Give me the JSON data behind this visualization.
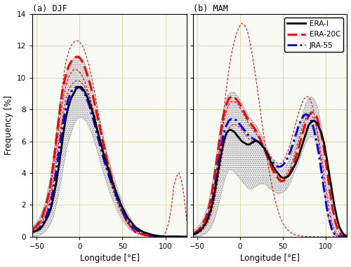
{
  "title_a": "(a) DJF",
  "title_b": "(b) MAM",
  "xlabel": "Longitude [°E]",
  "ylabel": "Frequency [%]",
  "ylim": [
    0,
    14
  ],
  "xlim": [
    -55,
    125
  ],
  "xticks": [
    -50,
    0,
    50,
    100
  ],
  "yticks": [
    0,
    2,
    4,
    6,
    8,
    10,
    12,
    14
  ],
  "legend_labels": [
    "ERA-I",
    "ERA-20C",
    "JRA-55"
  ],
  "lon": [
    -55,
    -52,
    -49,
    -46,
    -43,
    -40,
    -37,
    -34,
    -31,
    -28,
    -25,
    -22,
    -19,
    -16,
    -13,
    -10,
    -7,
    -4,
    -1,
    2,
    5,
    8,
    11,
    14,
    17,
    20,
    23,
    26,
    29,
    32,
    35,
    38,
    41,
    44,
    47,
    50,
    53,
    56,
    59,
    62,
    65,
    68,
    71,
    74,
    77,
    80,
    83,
    86,
    89,
    92,
    95,
    98,
    101,
    104,
    107,
    110,
    113,
    116,
    119,
    122,
    125
  ],
  "djf_erai": [
    0.3,
    0.35,
    0.4,
    0.5,
    0.7,
    1.0,
    1.3,
    1.7,
    2.4,
    3.2,
    4.2,
    5.3,
    6.5,
    7.5,
    8.2,
    8.7,
    9.0,
    9.3,
    9.4,
    9.4,
    9.2,
    8.9,
    8.5,
    8.0,
    7.5,
    6.8,
    6.2,
    5.6,
    5.0,
    4.5,
    4.0,
    3.5,
    3.0,
    2.6,
    2.2,
    1.8,
    1.5,
    1.2,
    1.0,
    0.8,
    0.6,
    0.5,
    0.4,
    0.3,
    0.25,
    0.2,
    0.15,
    0.1,
    0.08,
    0.05,
    0.03,
    0.02,
    0.01,
    0.01,
    0.01,
    0.01,
    0.01,
    0.01,
    0.0,
    0.0,
    0.0
  ],
  "djf_era20c": [
    0.5,
    0.6,
    0.8,
    1.0,
    1.4,
    1.9,
    2.5,
    3.3,
    4.5,
    5.8,
    7.2,
    8.5,
    9.5,
    10.2,
    10.7,
    11.0,
    11.2,
    11.3,
    11.3,
    11.1,
    10.8,
    10.3,
    9.8,
    9.2,
    8.5,
    7.7,
    7.0,
    6.2,
    5.5,
    4.8,
    4.2,
    3.6,
    3.0,
    2.5,
    2.0,
    1.6,
    1.2,
    0.9,
    0.7,
    0.5,
    0.3,
    0.25,
    0.2,
    0.15,
    0.1,
    0.08,
    0.05,
    0.03,
    0.02,
    0.01,
    0.01,
    0.0,
    0.0,
    0.0,
    0.0,
    0.0,
    0.0,
    0.0,
    0.0,
    0.0,
    0.0
  ],
  "djf_jra55": [
    0.3,
    0.35,
    0.45,
    0.6,
    0.85,
    1.15,
    1.55,
    2.1,
    2.9,
    3.9,
    5.0,
    6.2,
    7.3,
    8.1,
    8.7,
    9.1,
    9.3,
    9.4,
    9.4,
    9.3,
    9.1,
    8.7,
    8.3,
    7.7,
    7.2,
    6.5,
    5.9,
    5.3,
    4.7,
    4.2,
    3.7,
    3.2,
    2.8,
    2.4,
    2.0,
    1.6,
    1.3,
    1.0,
    0.8,
    0.6,
    0.5,
    0.4,
    0.3,
    0.25,
    0.2,
    0.15,
    0.1,
    0.08,
    0.05,
    0.03,
    0.02,
    0.01,
    0.01,
    0.01,
    0.01,
    0.01,
    0.0,
    0.0,
    0.0,
    0.0,
    0.0
  ],
  "djf_ci_upper": [
    0.7,
    0.8,
    1.0,
    1.3,
    1.7,
    2.2,
    3.0,
    3.8,
    5.0,
    6.3,
    7.5,
    8.6,
    9.5,
    10.2,
    10.7,
    11.0,
    11.2,
    11.3,
    11.3,
    11.2,
    11.0,
    10.6,
    10.1,
    9.5,
    8.8,
    8.0,
    7.3,
    6.6,
    5.9,
    5.3,
    4.7,
    4.1,
    3.6,
    3.1,
    2.6,
    2.2,
    1.8,
    1.5,
    1.2,
    0.9,
    0.7,
    0.55,
    0.43,
    0.33,
    0.25,
    0.2,
    0.15,
    0.1,
    0.07,
    0.05,
    0.03,
    0.02,
    0.01,
    0.01,
    0.0,
    0.0,
    0.0,
    0.0,
    0.0,
    0.0,
    0.0
  ],
  "djf_ci_lower": [
    0.0,
    0.0,
    0.05,
    0.1,
    0.2,
    0.35,
    0.55,
    0.8,
    1.2,
    1.8,
    2.5,
    3.4,
    4.4,
    5.3,
    6.0,
    6.5,
    7.0,
    7.3,
    7.5,
    7.5,
    7.4,
    7.2,
    6.9,
    6.5,
    6.0,
    5.5,
    4.9,
    4.3,
    3.8,
    3.3,
    2.8,
    2.4,
    2.0,
    1.6,
    1.3,
    1.0,
    0.8,
    0.6,
    0.45,
    0.33,
    0.23,
    0.16,
    0.11,
    0.08,
    0.06,
    0.04,
    0.03,
    0.02,
    0.01,
    0.01,
    0.0,
    0.0,
    0.0,
    0.0,
    0.0,
    0.0,
    0.0,
    0.0,
    0.0,
    0.0,
    0.0
  ],
  "djf_era20c_p1": [
    0.4,
    0.5,
    0.7,
    0.9,
    1.3,
    1.8,
    2.4,
    3.2,
    4.5,
    5.8,
    7.3,
    8.8,
    10.0,
    11.0,
    11.6,
    12.0,
    12.2,
    12.3,
    12.3,
    12.1,
    11.8,
    11.3,
    10.7,
    10.0,
    9.2,
    8.3,
    7.4,
    6.6,
    5.8,
    5.0,
    4.3,
    3.6,
    3.0,
    2.4,
    1.9,
    1.5,
    1.1,
    0.8,
    0.6,
    0.4,
    0.3,
    0.2,
    0.15,
    0.1,
    0.07,
    0.05,
    0.03,
    0.02,
    0.01,
    0.0,
    0.0,
    0.0,
    0.0,
    0.0,
    0.0,
    0.0,
    0.0,
    0.0,
    0.0,
    0.0,
    0.0
  ],
  "djf_era20c_p2": [
    0.4,
    0.5,
    0.65,
    0.9,
    1.2,
    1.7,
    2.2,
    3.0,
    4.0,
    5.2,
    6.5,
    7.8,
    8.8,
    9.5,
    10.0,
    10.3,
    10.5,
    10.5,
    10.4,
    10.2,
    9.9,
    9.4,
    8.9,
    8.3,
    7.7,
    6.9,
    6.2,
    5.5,
    4.8,
    4.2,
    3.6,
    3.1,
    2.6,
    2.1,
    1.7,
    1.4,
    1.1,
    0.85,
    0.65,
    0.5,
    0.38,
    0.28,
    0.21,
    0.15,
    0.11,
    0.08,
    0.05,
    0.03,
    0.02,
    0.01,
    0.01,
    0.0,
    0.0,
    0.0,
    0.0,
    0.0,
    0.0,
    0.0,
    0.0,
    0.0,
    0.0
  ],
  "djf_era20c_p3": [
    0.3,
    0.4,
    0.55,
    0.75,
    1.05,
    1.4,
    1.9,
    2.5,
    3.4,
    4.5,
    5.7,
    6.9,
    7.9,
    8.7,
    9.2,
    9.5,
    9.7,
    9.8,
    9.8,
    9.7,
    9.5,
    9.2,
    8.8,
    8.3,
    7.7,
    7.0,
    6.3,
    5.7,
    5.0,
    4.4,
    3.8,
    3.3,
    2.8,
    2.3,
    1.9,
    1.5,
    1.2,
    0.9,
    0.7,
    0.5,
    0.38,
    0.28,
    0.2,
    0.15,
    0.1,
    0.08,
    0.05,
    0.03,
    0.02,
    0.01,
    0.01,
    0.1,
    0.35,
    0.9,
    1.8,
    3.2,
    3.8,
    4.0,
    3.5,
    2.5,
    1.0
  ],
  "mam_erai": [
    0.15,
    0.2,
    0.3,
    0.4,
    0.6,
    0.85,
    1.2,
    1.7,
    2.4,
    3.3,
    4.3,
    5.2,
    6.0,
    6.5,
    6.7,
    6.7,
    6.6,
    6.4,
    6.2,
    6.0,
    5.9,
    5.8,
    5.8,
    5.9,
    6.0,
    6.0,
    5.9,
    5.7,
    5.5,
    5.2,
    4.8,
    4.5,
    4.2,
    4.0,
    3.8,
    3.7,
    3.7,
    3.8,
    4.0,
    4.3,
    4.6,
    5.0,
    5.5,
    6.0,
    6.5,
    7.0,
    7.2,
    7.3,
    7.2,
    6.9,
    6.5,
    5.9,
    5.0,
    4.0,
    3.0,
    2.0,
    1.2,
    0.6,
    0.3,
    0.1,
    0.05
  ],
  "mam_era20c": [
    0.2,
    0.3,
    0.4,
    0.6,
    0.9,
    1.2,
    1.7,
    2.4,
    3.4,
    4.5,
    5.7,
    6.8,
    7.7,
    8.3,
    8.7,
    8.8,
    8.8,
    8.6,
    8.4,
    8.1,
    7.8,
    7.5,
    7.2,
    7.0,
    6.8,
    6.5,
    6.2,
    5.8,
    5.4,
    5.0,
    4.6,
    4.2,
    3.9,
    3.7,
    3.5,
    3.5,
    3.6,
    3.8,
    4.1,
    4.5,
    5.0,
    5.5,
    6.1,
    6.7,
    7.2,
    7.6,
    7.8,
    7.8,
    7.6,
    7.1,
    6.4,
    5.5,
    4.4,
    3.2,
    2.1,
    1.2,
    0.6,
    0.25,
    0.1,
    0.04,
    0.01
  ],
  "mam_jra55": [
    0.15,
    0.2,
    0.3,
    0.45,
    0.65,
    0.9,
    1.3,
    1.85,
    2.6,
    3.6,
    4.7,
    5.7,
    6.5,
    7.0,
    7.3,
    7.4,
    7.4,
    7.3,
    7.1,
    6.9,
    6.7,
    6.5,
    6.3,
    6.2,
    6.1,
    6.0,
    5.9,
    5.7,
    5.5,
    5.2,
    4.9,
    4.7,
    4.5,
    4.4,
    4.4,
    4.5,
    4.7,
    5.0,
    5.4,
    5.9,
    6.4,
    6.9,
    7.3,
    7.6,
    7.7,
    7.6,
    7.3,
    6.8,
    6.1,
    5.2,
    4.1,
    3.0,
    1.9,
    1.1,
    0.5,
    0.2,
    0.08,
    0.03,
    0.01,
    0.0,
    0.0
  ],
  "mam_ci_upper": [
    0.4,
    0.5,
    0.65,
    0.85,
    1.15,
    1.6,
    2.1,
    2.9,
    3.9,
    5.0,
    6.2,
    7.3,
    8.1,
    8.7,
    9.0,
    9.1,
    9.1,
    8.9,
    8.7,
    8.4,
    8.1,
    7.8,
    7.5,
    7.3,
    7.1,
    6.9,
    6.6,
    6.3,
    5.9,
    5.5,
    5.1,
    4.8,
    4.5,
    4.3,
    4.2,
    4.2,
    4.4,
    4.7,
    5.1,
    5.6,
    6.1,
    6.7,
    7.3,
    7.9,
    8.4,
    8.7,
    8.8,
    8.7,
    8.4,
    7.8,
    7.0,
    6.0,
    4.8,
    3.5,
    2.3,
    1.3,
    0.65,
    0.25,
    0.08,
    0.02,
    0.0
  ],
  "mam_ci_lower": [
    0.0,
    0.0,
    0.02,
    0.05,
    0.1,
    0.2,
    0.35,
    0.55,
    0.9,
    1.4,
    2.0,
    2.7,
    3.4,
    3.9,
    4.2,
    4.2,
    4.1,
    3.9,
    3.7,
    3.5,
    3.3,
    3.1,
    3.0,
    3.0,
    3.1,
    3.2,
    3.3,
    3.3,
    3.3,
    3.2,
    3.0,
    2.9,
    2.8,
    2.7,
    2.7,
    2.8,
    2.9,
    3.1,
    3.4,
    3.8,
    4.2,
    4.6,
    5.1,
    5.5,
    5.9,
    6.2,
    6.3,
    6.2,
    5.9,
    5.4,
    4.7,
    3.8,
    2.8,
    1.8,
    0.9,
    0.4,
    0.15,
    0.05,
    0.01,
    0.0,
    0.0
  ],
  "mam_era20c_p1": [
    0.1,
    0.15,
    0.25,
    0.35,
    0.55,
    0.8,
    1.1,
    1.6,
    2.4,
    3.4,
    4.8,
    6.3,
    7.9,
    9.3,
    10.5,
    11.5,
    12.2,
    12.8,
    13.2,
    13.4,
    13.3,
    13.0,
    12.4,
    11.5,
    10.5,
    9.4,
    8.2,
    7.0,
    5.9,
    4.8,
    3.8,
    3.0,
    2.3,
    1.7,
    1.2,
    0.85,
    0.6,
    0.4,
    0.28,
    0.18,
    0.12,
    0.08,
    0.05,
    0.03,
    0.02,
    0.01,
    0.01,
    0.0,
    0.0,
    0.0,
    0.0,
    0.0,
    0.0,
    0.0,
    0.0,
    0.0,
    0.0,
    0.0,
    0.0,
    0.0,
    0.0
  ],
  "mam_era20c_p2": [
    0.2,
    0.28,
    0.38,
    0.55,
    0.8,
    1.1,
    1.5,
    2.1,
    3.0,
    4.0,
    5.2,
    6.3,
    7.2,
    7.9,
    8.3,
    8.5,
    8.5,
    8.4,
    8.2,
    7.9,
    7.6,
    7.3,
    7.0,
    6.8,
    6.6,
    6.4,
    6.1,
    5.8,
    5.4,
    5.0,
    4.6,
    4.3,
    4.0,
    3.8,
    3.7,
    3.7,
    3.8,
    4.1,
    4.4,
    4.9,
    5.4,
    6.0,
    6.6,
    7.1,
    7.5,
    7.7,
    7.7,
    7.4,
    6.9,
    6.1,
    5.1,
    3.9,
    2.7,
    1.7,
    0.9,
    0.4,
    0.15,
    0.05,
    0.01,
    0.0,
    0.0
  ],
  "mam_era20c_p3": [
    0.1,
    0.15,
    0.22,
    0.32,
    0.48,
    0.68,
    0.96,
    1.38,
    2.0,
    2.8,
    3.8,
    4.8,
    5.7,
    6.3,
    6.8,
    7.0,
    7.1,
    7.0,
    6.9,
    6.7,
    6.5,
    6.3,
    6.1,
    6.0,
    6.0,
    6.0,
    5.9,
    5.8,
    5.6,
    5.4,
    5.1,
    4.9,
    4.7,
    4.6,
    4.6,
    4.7,
    5.0,
    5.4,
    5.9,
    6.5,
    7.1,
    7.7,
    8.2,
    8.6,
    8.8,
    8.8,
    8.5,
    7.9,
    7.0,
    5.8,
    4.5,
    3.1,
    1.9,
    1.0,
    0.45,
    0.15,
    0.04,
    0.01,
    0.0,
    0.0,
    0.0
  ],
  "bg_color": "#fafaf5",
  "grid_color": "#d8d8b0",
  "figsize": [
    5.0,
    3.81
  ],
  "dpi": 100
}
